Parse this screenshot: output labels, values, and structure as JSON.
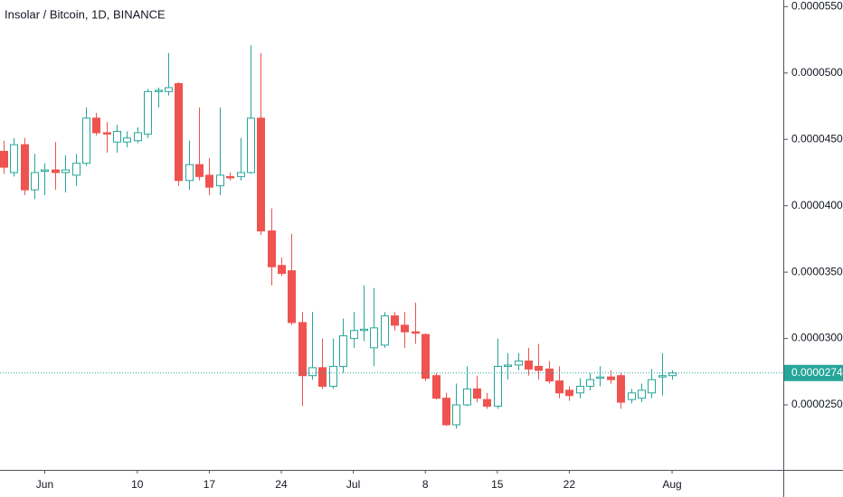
{
  "chart_data": {
    "type": "candlestick",
    "title": "Insolar / Bitcoin, 1D, BINANCE",
    "up_color": "#26a69a",
    "down_color": "#ef5350",
    "categories": [
      null,
      null,
      null,
      null,
      "Jun",
      null,
      null,
      null,
      null,
      null,
      null,
      null,
      null,
      "10",
      null,
      null,
      null,
      null,
      null,
      null,
      "17",
      null,
      null,
      null,
      null,
      null,
      null,
      "24",
      null,
      null,
      null,
      null,
      null,
      null,
      "Jul",
      null,
      null,
      null,
      null,
      null,
      null,
      "8",
      null,
      null,
      null,
      null,
      null,
      null,
      "15",
      null,
      null,
      null,
      null,
      null,
      null,
      "22",
      null,
      null,
      null,
      null,
      null,
      null,
      null,
      null,
      null,
      "Aug"
    ],
    "open": [
      4.41e-05,
      4.25e-05,
      4.46e-05,
      4.12e-05,
      4.26e-05,
      4.27e-05,
      4.25e-05,
      4.23e-05,
      4.32e-05,
      4.66e-05,
      4.55e-05,
      4.48e-05,
      4.48e-05,
      4.49e-05,
      4.54e-05,
      4.86e-05,
      4.86e-05,
      4.92e-05,
      4.19e-05,
      4.31e-05,
      4.23e-05,
      4.15e-05,
      4.22e-05,
      4.22e-05,
      4.25e-05,
      4.66e-05,
      3.81e-05,
      3.55e-05,
      3.51e-05,
      3.12e-05,
      2.72e-05,
      2.78e-05,
      2.64e-05,
      2.79e-05,
      3e-05,
      3.06e-05,
      2.93e-05,
      2.95e-05,
      3.17e-05,
      3.1e-05,
      3.05e-05,
      3.03e-05,
      2.72e-05,
      2.55e-05,
      2.35e-05,
      2.5e-05,
      2.62e-05,
      2.54e-05,
      2.49e-05,
      2.79e-05,
      2.8e-05,
      2.83e-05,
      2.79e-05,
      2.77e-05,
      2.68e-05,
      2.61e-05,
      2.59e-05,
      2.64e-05,
      2.7e-05,
      2.71e-05,
      2.72e-05,
      2.54e-05,
      2.55e-05,
      2.59e-05,
      2.71e-05,
      2.72e-05
    ],
    "high": [
      4.49e-05,
      4.51e-05,
      4.51e-05,
      4.39e-05,
      4.32e-05,
      4.48e-05,
      4.38e-05,
      4.39e-05,
      4.74e-05,
      4.7e-05,
      4.63e-05,
      4.61e-05,
      4.56e-05,
      4.59e-05,
      4.88e-05,
      4.89e-05,
      5.15e-05,
      4.93e-05,
      4.49e-05,
      4.74e-05,
      4.36e-05,
      4.74e-05,
      4.25e-05,
      4.51e-05,
      5.21e-05,
      5.15e-05,
      3.98e-05,
      3.61e-05,
      3.79e-05,
      3.2e-05,
      3.2e-05,
      3e-05,
      3e-05,
      3.15e-05,
      3.2e-05,
      3.4e-05,
      3.38e-05,
      3.2e-05,
      3.2e-05,
      3.2e-05,
      3.27e-05,
      3.04e-05,
      2.74e-05,
      2.59e-05,
      2.66e-05,
      2.79e-05,
      2.72e-05,
      2.59e-05,
      3e-05,
      2.89e-05,
      2.89e-05,
      2.93e-05,
      2.96e-05,
      2.83e-05,
      2.79e-05,
      2.64e-05,
      2.7e-05,
      2.74e-05,
      2.79e-05,
      2.76e-05,
      2.74e-05,
      2.62e-05,
      2.66e-05,
      2.77e-05,
      2.89e-05,
      2.76e-05
    ],
    "low": [
      4.24e-05,
      4.22e-05,
      4.08e-05,
      4.05e-05,
      4.08e-05,
      4.12e-05,
      4.1e-05,
      4.15e-05,
      4.3e-05,
      4.53e-05,
      4.4e-05,
      4.4e-05,
      4.44e-05,
      4.47e-05,
      4.51e-05,
      4.74e-05,
      4.83e-05,
      4.15e-05,
      4.12e-05,
      4.19e-05,
      4.08e-05,
      4.08e-05,
      4.19e-05,
      4.19e-05,
      4.24e-05,
      3.78e-05,
      3.4e-05,
      3.47e-05,
      3.1e-05,
      2.49e-05,
      2.69e-05,
      2.62e-05,
      2.62e-05,
      2.74e-05,
      2.93e-05,
      2.98e-05,
      2.79e-05,
      2.93e-05,
      3.06e-05,
      2.93e-05,
      2.96e-05,
      2.68e-05,
      2.54e-05,
      2.34e-05,
      2.32e-05,
      2.49e-05,
      2.52e-05,
      2.47e-05,
      2.47e-05,
      2.69e-05,
      2.76e-05,
      2.72e-05,
      2.69e-05,
      2.66e-05,
      2.55e-05,
      2.53e-05,
      2.55e-05,
      2.61e-05,
      2.64e-05,
      2.66e-05,
      2.47e-05,
      2.51e-05,
      2.52e-05,
      2.55e-05,
      2.57e-05,
      2.69e-05
    ],
    "close": [
      4.29e-05,
      4.46e-05,
      4.12e-05,
      4.25e-05,
      4.27e-05,
      4.25e-05,
      4.27e-05,
      4.32e-05,
      4.66e-05,
      4.55e-05,
      4.54e-05,
      4.56e-05,
      4.51e-05,
      4.55e-05,
      4.86e-05,
      4.87e-05,
      4.89e-05,
      4.19e-05,
      4.31e-05,
      4.22e-05,
      4.14e-05,
      4.23e-05,
      4.21e-05,
      4.25e-05,
      4.66e-05,
      3.81e-05,
      3.54e-05,
      3.49e-05,
      3.12e-05,
      2.72e-05,
      2.78e-05,
      2.64e-05,
      2.79e-05,
      3.02e-05,
      3.06e-05,
      3.07e-05,
      3.08e-05,
      3.17e-05,
      3.1e-05,
      3.05e-05,
      3.04e-05,
      2.7e-05,
      2.55e-05,
      2.35e-05,
      2.5e-05,
      2.62e-05,
      2.55e-05,
      2.49e-05,
      2.79e-05,
      2.8e-05,
      2.83e-05,
      2.77e-05,
      2.76e-05,
      2.68e-05,
      2.59e-05,
      2.57e-05,
      2.64e-05,
      2.69e-05,
      2.71e-05,
      2.69e-05,
      2.52e-05,
      2.59e-05,
      2.61e-05,
      2.69e-05,
      2.72e-05,
      2.74e-05
    ],
    "last_price": 2.74e-05,
    "ylim": [
      2.01e-05,
      5.55e-05
    ],
    "yticks": [
      {
        "value": 2.5e-05,
        "label": "0.0000250"
      },
      {
        "value": 3e-05,
        "label": "0.0000300"
      },
      {
        "value": 3.5e-05,
        "label": "0.0000350"
      },
      {
        "value": 4e-05,
        "label": "0.0000400"
      },
      {
        "value": 4.5e-05,
        "label": "0.0000450"
      },
      {
        "value": 5e-05,
        "label": "0.0000500"
      },
      {
        "value": 5.5e-05,
        "label": "0.0000550"
      }
    ],
    "grid": false
  }
}
